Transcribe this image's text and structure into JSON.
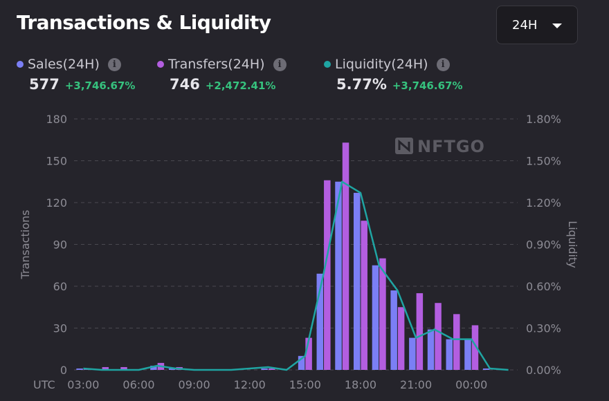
{
  "header": {
    "title": "Transactions & Liquidity",
    "range_value": "24H"
  },
  "metrics": [
    {
      "label": "Sales(24H)",
      "value": "577",
      "change": "+3,746.67%",
      "color": "#7b7ff5"
    },
    {
      "label": "Transfers(24H)",
      "value": "746",
      "change": "+2,472.41%",
      "color": "#b35ee0"
    },
    {
      "label": "Liquidity(24H)",
      "value": "5.77%",
      "change": "+3,746.67%",
      "color": "#1fa5a3"
    }
  ],
  "watermark": "NFTGO",
  "chart_data": {
    "type": "bar",
    "title": "Transactions & Liquidity",
    "ylabel": "Transactions",
    "y2label": "Liquidity",
    "timezone_label": "UTC",
    "ylim": [
      0,
      180
    ],
    "y2lim": [
      0,
      1.8
    ],
    "y_ticks": [
      "0",
      "30",
      "60",
      "90",
      "120",
      "150",
      "180"
    ],
    "y2_ticks": [
      "0.00%",
      "0.30%",
      "0.60%",
      "0.90%",
      "1.20%",
      "1.50%",
      "1.80%"
    ],
    "x_ticks": [
      "03:00",
      "06:00",
      "09:00",
      "12:00",
      "15:00",
      "18:00",
      "21:00",
      "00:00"
    ],
    "categories": [
      "03:00",
      "04:00",
      "05:00",
      "06:00",
      "07:00",
      "08:00",
      "09:00",
      "10:00",
      "11:00",
      "12:00",
      "13:00",
      "14:00",
      "15:00",
      "16:00",
      "17:00",
      "18:00",
      "19:00",
      "20:00",
      "21:00",
      "22:00",
      "23:00",
      "00:00",
      "01:00",
      "02:00"
    ],
    "series": [
      {
        "name": "Sales",
        "kind": "bar",
        "color": "#7b7ff5",
        "values": [
          1,
          0,
          0,
          0,
          3,
          1,
          0,
          0,
          0,
          0,
          1,
          0,
          10,
          69,
          135,
          127,
          75,
          57,
          23,
          29,
          22,
          22,
          1,
          0
        ]
      },
      {
        "name": "Transfers",
        "kind": "bar",
        "color": "#b35ee0",
        "values": [
          1,
          2,
          2,
          0,
          5,
          2,
          0,
          0,
          0,
          0,
          1,
          0,
          23,
          136,
          163,
          107,
          80,
          45,
          55,
          48,
          40,
          32,
          0,
          0
        ]
      },
      {
        "name": "Liquidity",
        "kind": "line",
        "color": "#1fa5a3",
        "unit": "%",
        "values": [
          0.01,
          0,
          0,
          0,
          0.03,
          0.01,
          0,
          0,
          0,
          0.01,
          0.02,
          0,
          0.1,
          0.69,
          1.35,
          1.27,
          0.75,
          0.57,
          0.23,
          0.29,
          0.22,
          0.22,
          0.01,
          0
        ]
      }
    ]
  }
}
